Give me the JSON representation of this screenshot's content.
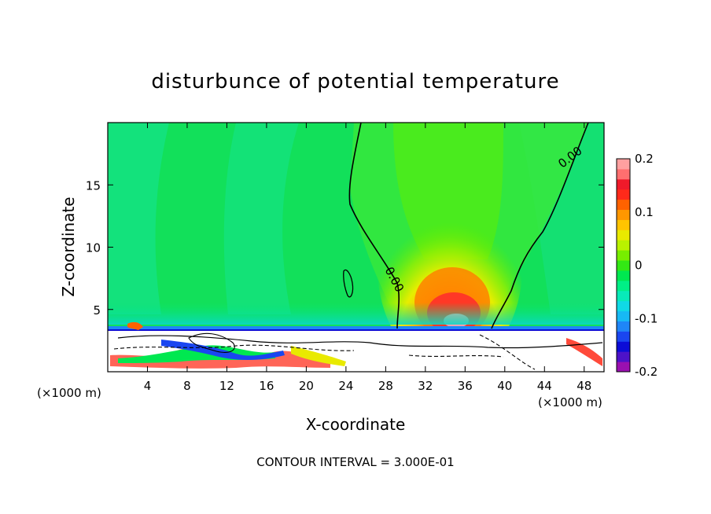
{
  "chart_data": {
    "type": "heatmap",
    "title": "disturbunce of potential temperature",
    "xlabel": "X-coordinate",
    "ylabel": "Z-coordinate",
    "x_unit_left": "(×1000 m)",
    "x_unit_right": "(×1000 m)",
    "xlim": [
      0,
      50
    ],
    "ylim": [
      0,
      20
    ],
    "x_ticks": [
      4,
      8,
      12,
      16,
      20,
      24,
      28,
      32,
      36,
      40,
      44,
      48
    ],
    "y_ticks": [
      5,
      10,
      15
    ],
    "colorbar": {
      "min": -0.2,
      "max": 0.2,
      "tick_values": [
        0.2,
        0.1,
        0,
        -0.1,
        -0.2
      ],
      "tick_labels": [
        "0.2",
        "0.1",
        "0",
        "-0.1",
        "-0.2"
      ],
      "colors": [
        "#9a10b0",
        "#4d12c8",
        "#0c0cd6",
        "#1a46f0",
        "#1f86f7",
        "#17b9f5",
        "#10d9e6",
        "#08eab9",
        "#00ef86",
        "#00e850",
        "#33e814",
        "#77ee00",
        "#b9f200",
        "#e9ea00",
        "#ffc400",
        "#ff9700",
        "#ff6200",
        "#ff2a1a",
        "#f01a2a",
        "#ff6f6f",
        "#ffa0a0"
      ]
    },
    "contour_label": "0.00",
    "warm_anomaly": {
      "x_center": 34.8,
      "z_center": 4.5,
      "peak": 0.19
    },
    "footer": "CONTOUR INTERVAL = 3.000E-01"
  }
}
